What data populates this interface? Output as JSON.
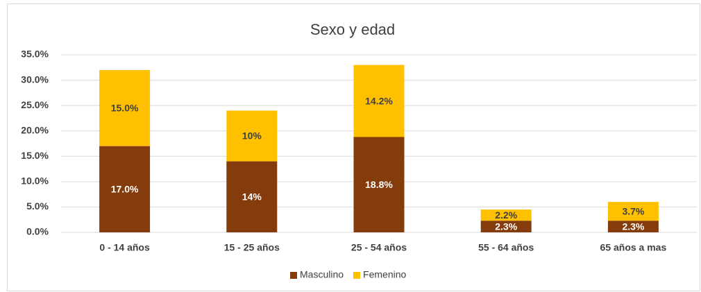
{
  "chart_data": {
    "type": "stacked_bar",
    "title": "Sexo y edad",
    "categories": [
      "0 - 14 años",
      "15 - 25 años",
      "25 - 54 años",
      "55 - 64 años",
      "65 años a mas"
    ],
    "series": [
      {
        "name": "Masculino",
        "color": "#843c0c",
        "values": [
          17.0,
          14,
          18.8,
          2.3,
          2.3
        ],
        "value_labels": [
          "17.0%",
          "14%",
          "18.8%",
          "2.3%",
          "2.3%"
        ]
      },
      {
        "name": "Femenino",
        "color": "#ffc000",
        "values": [
          15.0,
          10,
          14.2,
          2.2,
          3.7
        ],
        "value_labels": [
          "15.0%",
          "10%",
          "14.2%",
          "2.2%",
          "3.7%"
        ]
      }
    ],
    "ylim": [
      0,
      35
    ],
    "yticks": [
      {
        "value": 0,
        "label": "0.0%"
      },
      {
        "value": 5,
        "label": "5.0%"
      },
      {
        "value": 10,
        "label": "10.0%"
      },
      {
        "value": 15,
        "label": "15.0%"
      },
      {
        "value": 20,
        "label": "20.0%"
      },
      {
        "value": 25,
        "label": "25.0%"
      },
      {
        "value": 30,
        "label": "30.0%"
      },
      {
        "value": 35,
        "label": "35.0%"
      }
    ],
    "grid": true,
    "legend": "bottom"
  }
}
